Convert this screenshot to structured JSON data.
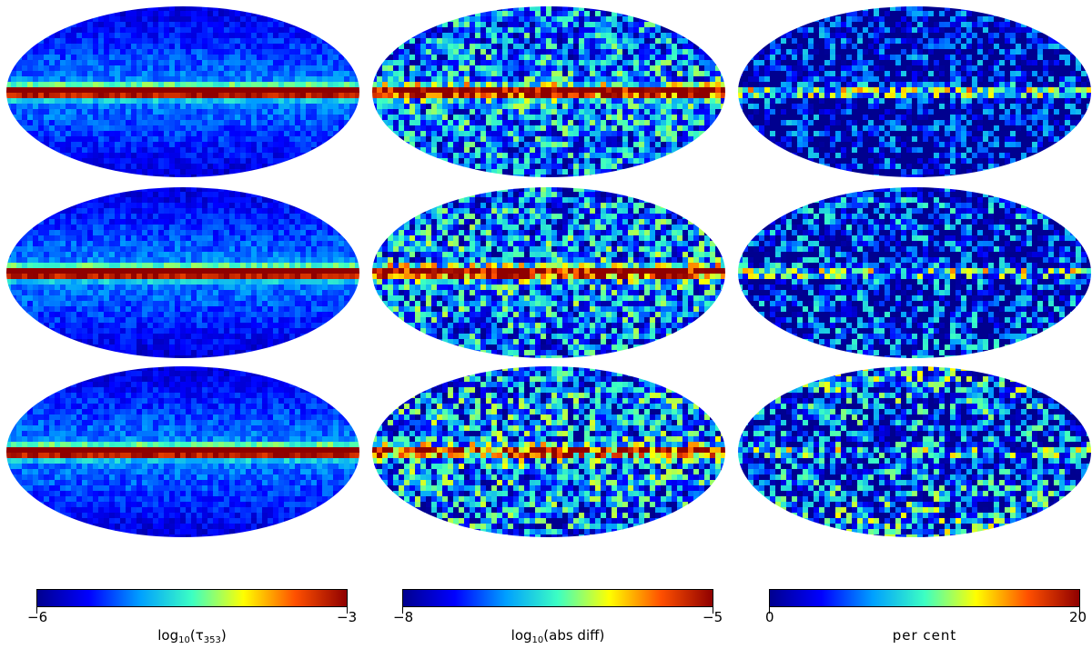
{
  "colormap": [
    "#00008f",
    "#0000ff",
    "#00a0ff",
    "#3cffc3",
    "#ffff00",
    "#ff5000",
    "#8f0000"
  ],
  "columns": [
    {
      "rows": [
        {
          "intensity": 0.55,
          "band": 1.0,
          "noise": 0.15
        },
        {
          "intensity": 0.55,
          "band": 1.0,
          "noise": 0.15
        },
        {
          "intensity": 0.55,
          "band": 1.0,
          "noise": 0.15
        }
      ],
      "colorbar": {
        "min_label": "−6",
        "max_label": "−3",
        "label_prefix": "log",
        "label_sub": "10",
        "label_suffix": "(τ",
        "label_sub2": "353",
        "label_end": ")"
      }
    },
    {
      "rows": [
        {
          "intensity": 0.45,
          "band": 0.95,
          "noise": 0.6
        },
        {
          "intensity": 0.45,
          "band": 0.9,
          "noise": 0.65
        },
        {
          "intensity": 0.45,
          "band": 0.7,
          "noise": 0.7
        }
      ],
      "colorbar": {
        "min_label": "−8",
        "max_label": "−5",
        "label_prefix": "log",
        "label_sub": "10",
        "label_suffix": "(abs diff)",
        "label_sub2": "",
        "label_end": ""
      }
    },
    {
      "rows": [
        {
          "intensity": 0.25,
          "band": 0.5,
          "noise": 0.7
        },
        {
          "intensity": 0.35,
          "band": 0.4,
          "noise": 0.75
        },
        {
          "intensity": 0.45,
          "band": 0.3,
          "noise": 0.8
        }
      ],
      "colorbar": {
        "min_label": "0",
        "max_label": "20",
        "label_prefix": "per cent",
        "label_sub": "",
        "label_suffix": "",
        "label_sub2": "",
        "label_end": ""
      }
    }
  ]
}
